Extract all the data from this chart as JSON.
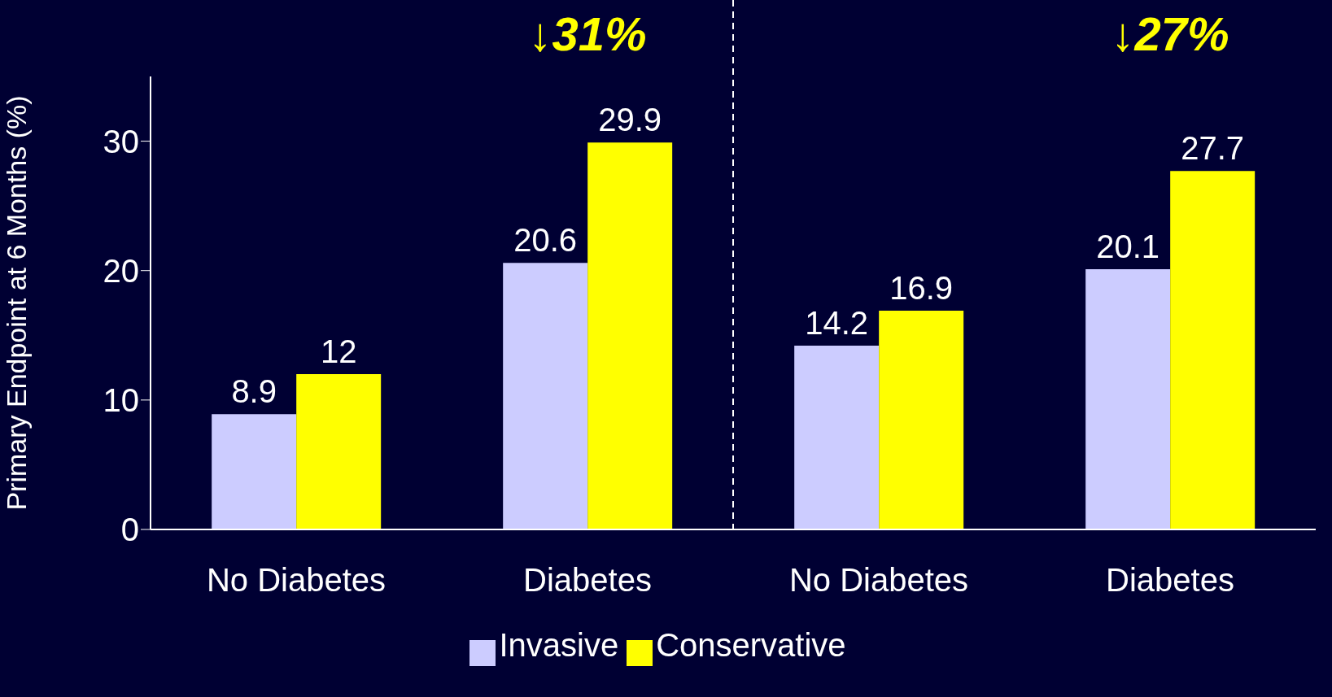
{
  "chart_data": {
    "type": "bar",
    "ylabel": "Primary Endpoint at 6 Months (%)",
    "categories": [
      "No Diabetes",
      "Diabetes",
      "No Diabetes",
      "Diabetes"
    ],
    "series": [
      {
        "name": "Invasive",
        "color": "#ccccff",
        "values": [
          8.9,
          20.6,
          14.2,
          20.1
        ]
      },
      {
        "name": "Conservative",
        "color": "#ffff00",
        "values": [
          12,
          29.9,
          16.9,
          27.7
        ]
      }
    ],
    "ylim": [
      0,
      35
    ],
    "yticks": [
      0,
      10,
      20,
      30
    ],
    "grid": false,
    "legend": "bottom",
    "data_labels": true,
    "annotations": [
      "↓31%",
      "↓27%"
    ]
  }
}
